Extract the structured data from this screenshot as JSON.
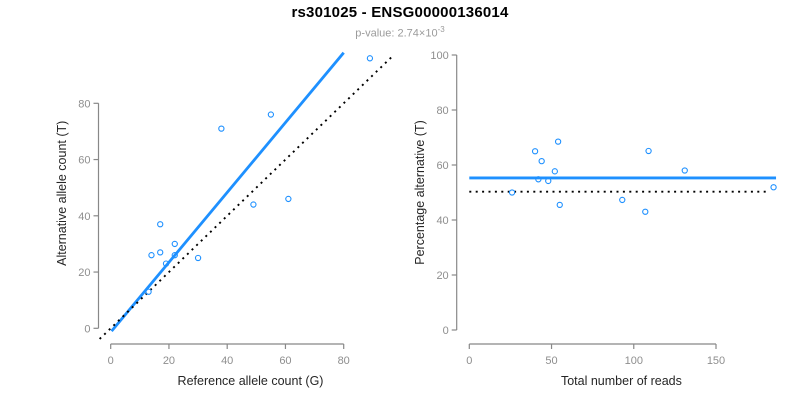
{
  "header": {
    "title": "rs301025 - ENSG00000136014",
    "pvalue_label": "p-value: 2.74×10",
    "pvalue_exponent": "-3"
  },
  "colors": {
    "point_blue": "#1E90FF",
    "line_blue": "#1E90FF",
    "dotted_black": "#000000",
    "axis": "#888888",
    "tick_label": "#8e8e8e",
    "axis_title": "#262626",
    "subtitle_gray": "#9b9b9b"
  },
  "chart_data": [
    {
      "type": "scatter",
      "panel": "left",
      "xlabel": "Reference allele count (G)",
      "ylabel": "Alternative allele count (T)",
      "xticks": [
        0,
        20,
        40,
        60,
        80
      ],
      "yticks": [
        0,
        20,
        40,
        60,
        80
      ],
      "xlim": [
        -3.8,
        99.8
      ],
      "ylim": [
        -3.8,
        99.8
      ],
      "grid": false,
      "points": [
        [
          13,
          13
        ],
        [
          14,
          26
        ],
        [
          17,
          27
        ],
        [
          17,
          37
        ],
        [
          19,
          23
        ],
        [
          22,
          26
        ],
        [
          22,
          30
        ],
        [
          30,
          25
        ],
        [
          38,
          71
        ],
        [
          49,
          44
        ],
        [
          55,
          76
        ],
        [
          61,
          46
        ],
        [
          89,
          96
        ]
      ],
      "lines": [
        {
          "name": "fit-line",
          "style": "solid",
          "color": "#1E90FF",
          "x1": 0.3,
          "y1": -1,
          "x2": 80,
          "y2": 98
        },
        {
          "name": "identity-line",
          "style": "dotted",
          "color": "#000000",
          "x1": -3.8,
          "y1": -3.8,
          "x2": 97,
          "y2": 97
        }
      ]
    },
    {
      "type": "scatter",
      "panel": "right",
      "xlabel": "Total number of reads",
      "ylabel": "Percentage alternative (T)",
      "xticks": [
        0,
        50,
        100,
        150
      ],
      "yticks": [
        0,
        20,
        40,
        60,
        80,
        100
      ],
      "xlim": [
        -7.4,
        192.4
      ],
      "ylim": [
        -4,
        104
      ],
      "grid": false,
      "points": [
        [
          26,
          50
        ],
        [
          40,
          65
        ],
        [
          44,
          61.4
        ],
        [
          54,
          68.5
        ],
        [
          42,
          54.8
        ],
        [
          48,
          54.2
        ],
        [
          52,
          57.7
        ],
        [
          55,
          45.5
        ],
        [
          109,
          65.1
        ],
        [
          93,
          47.3
        ],
        [
          131,
          58
        ],
        [
          107,
          43
        ],
        [
          185,
          51.9
        ]
      ],
      "lines": [
        {
          "name": "mean-line",
          "style": "solid",
          "color": "#1E90FF",
          "x1": 0,
          "y1": 55.3,
          "x2": 186.5,
          "y2": 55.3
        },
        {
          "name": "expected-line",
          "style": "dotted",
          "color": "#000000",
          "x1": 0,
          "y1": 50.3,
          "x2": 181.6,
          "y2": 50.3
        }
      ]
    }
  ]
}
